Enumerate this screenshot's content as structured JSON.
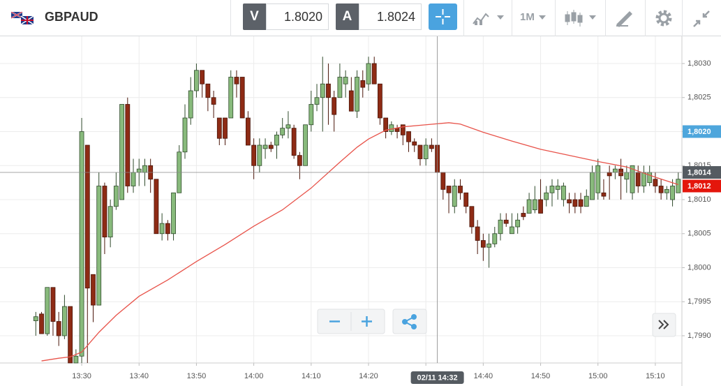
{
  "toolbar": {
    "symbol": "GBPAUD",
    "bid_label": "V",
    "bid": "1.8020",
    "ask_label": "A",
    "ask": "1.8024",
    "timeframe": "1M"
  },
  "chart_data": {
    "type": "candlestick",
    "x": [
      "13:22",
      "13:23",
      "13:24",
      "13:25",
      "13:26",
      "13:27",
      "13:28",
      "13:29",
      "13:30",
      "13:31",
      "13:32",
      "13:33",
      "13:34",
      "13:35",
      "13:36",
      "13:37",
      "13:38",
      "13:39",
      "13:40",
      "13:41",
      "13:42",
      "13:43",
      "13:44",
      "13:45",
      "13:46",
      "13:47",
      "13:48",
      "13:49",
      "13:50",
      "13:51",
      "13:52",
      "13:53",
      "13:54",
      "13:55",
      "13:56",
      "13:57",
      "13:58",
      "13:59",
      "14:00",
      "14:01",
      "14:02",
      "14:03",
      "14:04",
      "14:05",
      "14:06",
      "14:07",
      "14:08",
      "14:09",
      "14:10",
      "14:11",
      "14:12",
      "14:13",
      "14:14",
      "14:15",
      "14:16",
      "14:17",
      "14:18",
      "14:19",
      "14:20",
      "14:21",
      "14:22",
      "14:23",
      "14:24",
      "14:25",
      "14:26",
      "14:27",
      "14:28",
      "14:29",
      "14:30",
      "14:31",
      "14:32",
      "14:33",
      "14:34",
      "14:35",
      "14:36",
      "14:37",
      "14:38",
      "14:39",
      "14:40",
      "14:41",
      "14:42",
      "14:43",
      "14:44",
      "14:45",
      "14:46",
      "14:47",
      "14:48",
      "14:49",
      "14:50",
      "14:51",
      "14:52",
      "14:53",
      "14:54",
      "14:55",
      "14:56",
      "14:57",
      "14:58",
      "14:59",
      "15:00",
      "15:01",
      "15:02",
      "15:03",
      "15:04",
      "15:05",
      "15:06",
      "15:07",
      "15:08",
      "15:09",
      "15:10",
      "15:11",
      "15:12",
      "15:13",
      "15:14"
    ],
    "open": [
      1.79922,
      1.79932,
      1.79903,
      1.79971,
      1.79921,
      1.799,
      1.79943,
      1.7986,
      1.7987,
      1.8018,
      1.7999,
      1.79945,
      1.8012,
      1.80045,
      1.8009,
      1.801,
      1.8024,
      1.8012,
      1.8014,
      1.8014,
      1.8015,
      1.8013,
      1.8005,
      1.80065,
      1.8005,
      1.8011,
      1.8017,
      1.8022,
      1.8026,
      1.8029,
      1.8027,
      1.8025,
      1.8022,
      1.8022,
      1.8022,
      1.8028,
      1.8028,
      1.8022,
      1.8018,
      1.8015,
      1.80175,
      1.8018,
      1.8018,
      1.80195,
      1.80205,
      1.80205,
      1.80165,
      1.8015,
      1.8021,
      1.8024,
      1.8025,
      1.8027,
      1.8025,
      1.8025,
      1.8027,
      1.8026,
      1.8023,
      1.80275,
      1.8027,
      1.803,
      1.8027,
      1.8022,
      1.802,
      1.80205,
      1.8021,
      1.802,
      1.80185,
      1.8018,
      1.8016,
      1.8018,
      1.8018,
      1.8014,
      1.8012,
      1.8009,
      1.8012,
      1.8011,
      1.8009,
      1.8006,
      1.8004,
      1.8003,
      1.80035,
      1.8005,
      1.8007,
      1.8005,
      1.8006,
      1.8008,
      1.8008,
      1.80085,
      1.801,
      1.801,
      1.8011,
      1.80115,
      1.801,
      1.801,
      1.801,
      1.801,
      1.8009,
      1.801,
      1.8011,
      1.8011,
      1.8014,
      1.8014,
      1.80145,
      1.8013,
      1.8011,
      1.8014,
      1.8012,
      1.80125,
      1.8013,
      1.8012,
      1.8011,
      1.801,
      1.8011
    ],
    "high": [
      1.79935,
      1.79935,
      1.79971,
      1.79971,
      1.79935,
      1.7996,
      1.79943,
      1.7988,
      1.8022,
      1.8018,
      1.7999,
      1.8014,
      1.80125,
      1.801,
      1.8014,
      1.8024,
      1.8025,
      1.8016,
      1.8016,
      1.8016,
      1.8016,
      1.8013,
      1.8008,
      1.8007,
      1.8011,
      1.8018,
      1.8024,
      1.8028,
      1.803,
      1.8029,
      1.8027,
      1.8026,
      1.8022,
      1.8022,
      1.8029,
      1.8029,
      1.8028,
      1.8023,
      1.8019,
      1.8019,
      1.8019,
      1.80185,
      1.802,
      1.8022,
      1.8023,
      1.8021,
      1.8017,
      1.8021,
      1.8026,
      1.8027,
      1.8031,
      1.803,
      1.8026,
      1.803,
      1.8029,
      1.8028,
      1.8029,
      1.8029,
      1.8031,
      1.8031,
      1.8027,
      1.8022,
      1.80215,
      1.8021,
      1.8021,
      1.802,
      1.8019,
      1.8018,
      1.8019,
      1.8019,
      1.8018,
      1.8014,
      1.8012,
      1.8013,
      1.8013,
      1.8011,
      1.8009,
      1.8007,
      1.8005,
      1.8005,
      1.8006,
      1.8008,
      1.8008,
      1.8008,
      1.8008,
      1.8009,
      1.8011,
      1.8012,
      1.8013,
      1.8012,
      1.8013,
      1.8013,
      1.80125,
      1.8011,
      1.8011,
      1.8011,
      1.80115,
      1.8015,
      1.8016,
      1.8013,
      1.8015,
      1.8015,
      1.8016,
      1.8015,
      1.8015,
      1.8015,
      1.8015,
      1.8015,
      1.8014,
      1.8013,
      1.8012,
      1.8013,
      1.8014
    ],
    "low": [
      1.799,
      1.79903,
      1.799,
      1.799,
      1.79885,
      1.79895,
      1.7986,
      1.7986,
      1.7986,
      1.7986,
      1.7992,
      1.79945,
      1.8002,
      1.8003,
      1.80085,
      1.801,
      1.8011,
      1.8011,
      1.8012,
      1.8012,
      1.8011,
      1.8005,
      1.8004,
      1.8004,
      1.8004,
      1.8011,
      1.8016,
      1.8021,
      1.8025,
      1.8025,
      1.8023,
      1.8022,
      1.8018,
      1.8018,
      1.8022,
      1.8025,
      1.8022,
      1.8018,
      1.8013,
      1.8014,
      1.8016,
      1.8017,
      1.8016,
      1.8019,
      1.8019,
      1.8016,
      1.8013,
      1.8015,
      1.802,
      1.8023,
      1.802,
      1.8021,
      1.802,
      1.8025,
      1.8025,
      1.8023,
      1.8022,
      1.8025,
      1.8026,
      1.8027,
      1.8021,
      1.8019,
      1.80195,
      1.8019,
      1.8018,
      1.8017,
      1.8017,
      1.8015,
      1.8015,
      1.8017,
      1.8014,
      1.801,
      1.8008,
      1.8008,
      1.801,
      1.8008,
      1.8005,
      1.8002,
      1.8001,
      1.8,
      1.8003,
      1.8004,
      1.8006,
      1.8005,
      1.8005,
      1.8007,
      1.8008,
      1.8008,
      1.8008,
      1.8009,
      1.8009,
      1.801,
      1.8009,
      1.8008,
      1.8008,
      1.8008,
      1.8009,
      1.801,
      1.801,
      1.801,
      1.801,
      1.8013,
      1.801,
      1.8011,
      1.801,
      1.8011,
      1.8011,
      1.8012,
      1.8011,
      1.801,
      1.801,
      1.8009,
      1.8011
    ],
    "close": [
      1.79928,
      1.79903,
      1.79971,
      1.79921,
      1.799,
      1.79943,
      1.7986,
      1.7987,
      1.802,
      1.7997,
      1.79945,
      1.8012,
      1.80045,
      1.8009,
      1.8012,
      1.8024,
      1.8012,
      1.8014,
      1.80145,
      1.8015,
      1.8013,
      1.8005,
      1.80065,
      1.8005,
      1.8011,
      1.8017,
      1.8022,
      1.8026,
      1.8029,
      1.8027,
      1.8025,
      1.8024,
      1.8019,
      1.8019,
      1.8028,
      1.8027,
      1.8022,
      1.8018,
      1.8015,
      1.8018,
      1.8018,
      1.80175,
      1.80195,
      1.80205,
      1.8021,
      1.80165,
      1.8015,
      1.8021,
      1.8024,
      1.8025,
      1.8027,
      1.8025,
      1.80225,
      1.8028,
      1.8028,
      1.8023,
      1.8028,
      1.80265,
      1.803,
      1.8027,
      1.8022,
      1.802,
      1.8021,
      1.802,
      1.80195,
      1.80185,
      1.8018,
      1.8016,
      1.8018,
      1.80175,
      1.8014,
      1.80115,
      1.8011,
      1.8012,
      1.8011,
      1.8009,
      1.8006,
      1.8004,
      1.8003,
      1.80035,
      1.8005,
      1.8007,
      1.80065,
      1.8006,
      1.8007,
      1.80075,
      1.801,
      1.801,
      1.8008,
      1.8011,
      1.8012,
      1.8012,
      1.8012,
      1.80095,
      1.8009,
      1.8009,
      1.80105,
      1.8014,
      1.8015,
      1.80105,
      1.80135,
      1.80145,
      1.80135,
      1.8014,
      1.8015,
      1.8012,
      1.8014,
      1.8014,
      1.8012,
      1.8011,
      1.80115,
      1.8012,
      1.8013
    ],
    "up_color": "#88ba7c",
    "down_color": "#8e2b15",
    "overlays": [
      {
        "type": "line",
        "color": "#e8534a",
        "x": [
          "13:23",
          "13:26",
          "13:28",
          "13:30",
          "13:33",
          "13:36",
          "13:40",
          "13:45",
          "13:50",
          "13:55",
          "14:00",
          "14:05",
          "14:10",
          "14:15",
          "14:18",
          "14:20",
          "14:23",
          "14:26",
          "14:30",
          "14:34",
          "14:36",
          "14:40",
          "14:45",
          "14:50",
          "14:55",
          "15:00",
          "15:05",
          "15:10",
          "15:14"
        ],
        "values": [
          1.79863,
          1.79867,
          1.79869,
          1.79876,
          1.79905,
          1.7993,
          1.79958,
          1.79982,
          1.80009,
          1.80034,
          1.80061,
          1.80085,
          1.80117,
          1.80155,
          1.80177,
          1.80189,
          1.80202,
          1.80207,
          1.8021,
          1.80213,
          1.80211,
          1.80199,
          1.80186,
          1.80174,
          1.80165,
          1.80156,
          1.80148,
          1.80133,
          1.80122
        ]
      }
    ],
    "xlim": [
      "13:16",
      "15:15"
    ],
    "xticks": [
      "13:30",
      "13:40",
      "13:50",
      "14:00",
      "14:10",
      "14:20",
      "14:30",
      "14:40",
      "14:50",
      "15:00",
      "15:10"
    ],
    "ylim": [
      1.7986,
      1.8034
    ],
    "yticks": [
      {
        "value": 1.799,
        "label": "1,7990"
      },
      {
        "value": 1.7995,
        "label": "1,7995"
      },
      {
        "value": 1.8,
        "label": "1,8000"
      },
      {
        "value": 1.8005,
        "label": "1,8005"
      },
      {
        "value": 1.801,
        "label": "1,8010"
      },
      {
        "value": 1.8015,
        "label": "1,8015"
      },
      {
        "value": 1.802,
        "label": "1,8020"
      },
      {
        "value": 1.8025,
        "label": "1,8025"
      },
      {
        "value": 1.803,
        "label": "1,8030"
      }
    ],
    "grid": true,
    "price_tags": [
      {
        "value": 1.802,
        "label": "1,8020",
        "color": "#4ea6dc"
      },
      {
        "value": 1.8012,
        "label": "1,8012",
        "color": "#e4160c"
      }
    ],
    "crosshair": {
      "x": "14:32",
      "label": "02/11 14:32",
      "value": 1.8014,
      "value_label": "1,8014",
      "color": "#555b61"
    }
  }
}
